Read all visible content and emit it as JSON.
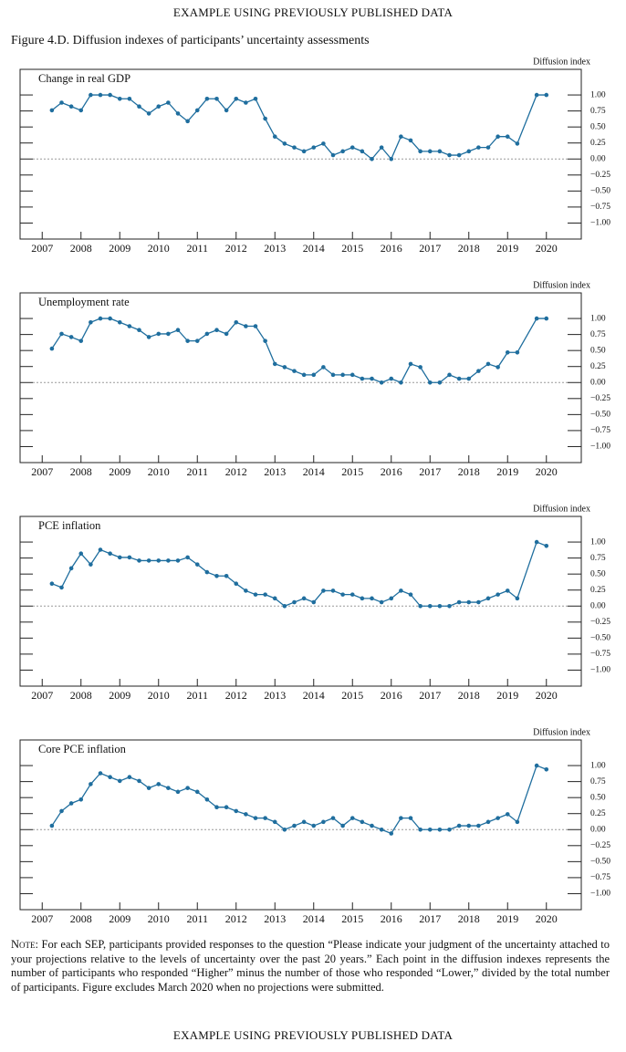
{
  "header": "EXAMPLE USING PREVIOUSLY PUBLISHED DATA",
  "figure_title": "Figure 4.D. Diffusion indexes of participants’ uncertainty assessments",
  "note_label": "Note:",
  "note": "For each SEP, participants provided responses to the question “Please indicate your judgment of the uncertainty attached to your projections relative to the levels of uncertainty over the past 20 years.” Each point in the diffusion indexes represents the number of participants who responded “Higher” minus the number of those who responded “Lower,” divided by the total number of participants. Figure excludes March 2020 when no projections were submitted.",
  "footer": "EXAMPLE USING PREVIOUSLY PUBLISHED DATA",
  "chart_data": [
    {
      "type": "line",
      "title": "Change in real GDP",
      "y_label": "Diffusion index",
      "color": "#1f6e9e",
      "zero_line": true,
      "x": [
        2007.75,
        2008,
        2008.25,
        2008.5,
        2008.75,
        2009,
        2009.25,
        2009.5,
        2009.75,
        2010,
        2010.25,
        2010.5,
        2010.75,
        2011,
        2011.25,
        2011.5,
        2011.75,
        2012,
        2012.25,
        2012.5,
        2012.75,
        2013,
        2013.25,
        2013.5,
        2013.75,
        2014,
        2014.25,
        2014.5,
        2014.75,
        2015,
        2015.25,
        2015.5,
        2015.75,
        2016,
        2016.25,
        2016.5,
        2016.75,
        2017,
        2017.25,
        2017.5,
        2017.75,
        2018,
        2018.25,
        2018.5,
        2018.75,
        2019,
        2019.25,
        2019.5,
        2019.75,
        2020.25,
        2020.5
      ],
      "values": [
        0.76,
        0.88,
        0.82,
        0.76,
        1.0,
        1.0,
        1.0,
        0.94,
        0.94,
        0.82,
        0.71,
        0.82,
        0.88,
        0.71,
        0.59,
        0.76,
        0.94,
        0.94,
        0.76,
        0.94,
        0.88,
        0.94,
        0.63,
        0.35,
        0.24,
        0.18,
        0.12,
        0.18,
        0.24,
        0.06,
        0.12,
        0.18,
        0.12,
        0.0,
        0.18,
        0.0,
        0.35,
        0.29,
        0.12,
        0.12,
        0.12,
        0.06,
        0.06,
        0.12,
        0.18,
        0.18,
        0.35,
        0.35,
        0.24,
        1.0,
        1.0
      ],
      "xlim": [
        2007,
        2021.4
      ],
      "ylim": [
        -1.25,
        1.4
      ],
      "xticks": [
        {
          "value": 2007.5,
          "label": "2007"
        },
        {
          "value": 2008.5,
          "label": "2008"
        },
        {
          "value": 2009.5,
          "label": "2009"
        },
        {
          "value": 2010.5,
          "label": "2010"
        },
        {
          "value": 2011.5,
          "label": "2011"
        },
        {
          "value": 2012.5,
          "label": "2012"
        },
        {
          "value": 2013.5,
          "label": "2013"
        },
        {
          "value": 2014.5,
          "label": "2014"
        },
        {
          "value": 2015.5,
          "label": "2015"
        },
        {
          "value": 2016.5,
          "label": "2016"
        },
        {
          "value": 2017.5,
          "label": "2017"
        },
        {
          "value": 2018.5,
          "label": "2018"
        },
        {
          "value": 2019.5,
          "label": "2019"
        },
        {
          "value": 2020.5,
          "label": "2020"
        }
      ],
      "yticks": [
        {
          "value": 1,
          "label": "1.00"
        },
        {
          "value": 0.75,
          "label": "0.75"
        },
        {
          "value": 0.5,
          "label": "0.50"
        },
        {
          "value": 0.25,
          "label": "0.25"
        },
        {
          "value": 0,
          "label": "0.00"
        },
        {
          "value": -0.25,
          "label": "−0.25"
        },
        {
          "value": -0.5,
          "label": "−0.50"
        },
        {
          "value": -0.75,
          "label": "−0.75"
        },
        {
          "value": -1,
          "label": "−1.00"
        }
      ]
    },
    {
      "type": "line",
      "title": "Unemployment rate",
      "y_label": "Diffusion index",
      "color": "#1f6e9e",
      "zero_line": true,
      "x": [
        2007.75,
        2008,
        2008.25,
        2008.5,
        2008.75,
        2009,
        2009.25,
        2009.5,
        2009.75,
        2010,
        2010.25,
        2010.5,
        2010.75,
        2011,
        2011.25,
        2011.5,
        2011.75,
        2012,
        2012.25,
        2012.5,
        2012.75,
        2013,
        2013.25,
        2013.5,
        2013.75,
        2014,
        2014.25,
        2014.5,
        2014.75,
        2015,
        2015.25,
        2015.5,
        2015.75,
        2016,
        2016.25,
        2016.5,
        2016.75,
        2017,
        2017.25,
        2017.5,
        2017.75,
        2018,
        2018.25,
        2018.5,
        2018.75,
        2019,
        2019.25,
        2019.5,
        2019.75,
        2020.25,
        2020.5
      ],
      "values": [
        0.53,
        0.76,
        0.71,
        0.65,
        0.94,
        1.0,
        1.0,
        0.94,
        0.88,
        0.82,
        0.71,
        0.76,
        0.76,
        0.82,
        0.65,
        0.65,
        0.76,
        0.82,
        0.76,
        0.94,
        0.88,
        0.88,
        0.65,
        0.29,
        0.24,
        0.18,
        0.12,
        0.12,
        0.24,
        0.12,
        0.12,
        0.12,
        0.06,
        0.06,
        0.0,
        0.06,
        0.0,
        0.29,
        0.24,
        0.0,
        0.0,
        0.12,
        0.06,
        0.06,
        0.18,
        0.29,
        0.24,
        0.47,
        0.47,
        1.0,
        1.0
      ],
      "xlim": [
        2007,
        2021.4
      ],
      "ylim": [
        -1.25,
        1.4
      ],
      "xticks": [
        {
          "value": 2007.5,
          "label": "2007"
        },
        {
          "value": 2008.5,
          "label": "2008"
        },
        {
          "value": 2009.5,
          "label": "2009"
        },
        {
          "value": 2010.5,
          "label": "2010"
        },
        {
          "value": 2011.5,
          "label": "2011"
        },
        {
          "value": 2012.5,
          "label": "2012"
        },
        {
          "value": 2013.5,
          "label": "2013"
        },
        {
          "value": 2014.5,
          "label": "2014"
        },
        {
          "value": 2015.5,
          "label": "2015"
        },
        {
          "value": 2016.5,
          "label": "2016"
        },
        {
          "value": 2017.5,
          "label": "2017"
        },
        {
          "value": 2018.5,
          "label": "2018"
        },
        {
          "value": 2019.5,
          "label": "2019"
        },
        {
          "value": 2020.5,
          "label": "2020"
        }
      ],
      "yticks": [
        {
          "value": 1,
          "label": "1.00"
        },
        {
          "value": 0.75,
          "label": "0.75"
        },
        {
          "value": 0.5,
          "label": "0.50"
        },
        {
          "value": 0.25,
          "label": "0.25"
        },
        {
          "value": 0,
          "label": "0.00"
        },
        {
          "value": -0.25,
          "label": "−0.25"
        },
        {
          "value": -0.5,
          "label": "−0.50"
        },
        {
          "value": -0.75,
          "label": "−0.75"
        },
        {
          "value": -1,
          "label": "−1.00"
        }
      ]
    },
    {
      "type": "line",
      "title": "PCE inflation",
      "y_label": "Diffusion index",
      "color": "#1f6e9e",
      "zero_line": true,
      "x": [
        2007.75,
        2008,
        2008.25,
        2008.5,
        2008.75,
        2009,
        2009.25,
        2009.5,
        2009.75,
        2010,
        2010.25,
        2010.5,
        2010.75,
        2011,
        2011.25,
        2011.5,
        2011.75,
        2012,
        2012.25,
        2012.5,
        2012.75,
        2013,
        2013.25,
        2013.5,
        2013.75,
        2014,
        2014.25,
        2014.5,
        2014.75,
        2015,
        2015.25,
        2015.5,
        2015.75,
        2016,
        2016.25,
        2016.5,
        2016.75,
        2017,
        2017.25,
        2017.5,
        2017.75,
        2018,
        2018.25,
        2018.5,
        2018.75,
        2019,
        2019.25,
        2019.5,
        2019.75,
        2020.25,
        2020.5
      ],
      "values": [
        0.35,
        0.29,
        0.59,
        0.82,
        0.65,
        0.88,
        0.82,
        0.76,
        0.76,
        0.71,
        0.71,
        0.71,
        0.71,
        0.71,
        0.76,
        0.65,
        0.53,
        0.47,
        0.47,
        0.35,
        0.24,
        0.18,
        0.18,
        0.12,
        0.0,
        0.06,
        0.12,
        0.06,
        0.24,
        0.24,
        0.18,
        0.18,
        0.12,
        0.12,
        0.06,
        0.12,
        0.24,
        0.18,
        0.0,
        0.0,
        0.0,
        0.0,
        0.06,
        0.06,
        0.06,
        0.12,
        0.18,
        0.24,
        0.12,
        1.0,
        0.94
      ],
      "xlim": [
        2007,
        2021.4
      ],
      "ylim": [
        -1.25,
        1.4
      ],
      "xticks": [
        {
          "value": 2007.5,
          "label": "2007"
        },
        {
          "value": 2008.5,
          "label": "2008"
        },
        {
          "value": 2009.5,
          "label": "2009"
        },
        {
          "value": 2010.5,
          "label": "2010"
        },
        {
          "value": 2011.5,
          "label": "2011"
        },
        {
          "value": 2012.5,
          "label": "2012"
        },
        {
          "value": 2013.5,
          "label": "2013"
        },
        {
          "value": 2014.5,
          "label": "2014"
        },
        {
          "value": 2015.5,
          "label": "2015"
        },
        {
          "value": 2016.5,
          "label": "2016"
        },
        {
          "value": 2017.5,
          "label": "2017"
        },
        {
          "value": 2018.5,
          "label": "2018"
        },
        {
          "value": 2019.5,
          "label": "2019"
        },
        {
          "value": 2020.5,
          "label": "2020"
        }
      ],
      "yticks": [
        {
          "value": 1,
          "label": "1.00"
        },
        {
          "value": 0.75,
          "label": "0.75"
        },
        {
          "value": 0.5,
          "label": "0.50"
        },
        {
          "value": 0.25,
          "label": "0.25"
        },
        {
          "value": 0,
          "label": "0.00"
        },
        {
          "value": -0.25,
          "label": "−0.25"
        },
        {
          "value": -0.5,
          "label": "−0.50"
        },
        {
          "value": -0.75,
          "label": "−0.75"
        },
        {
          "value": -1,
          "label": "−1.00"
        }
      ]
    },
    {
      "type": "line",
      "title": "Core PCE inflation",
      "y_label": "Diffusion index",
      "color": "#1f6e9e",
      "zero_line": true,
      "x": [
        2007.75,
        2008,
        2008.25,
        2008.5,
        2008.75,
        2009,
        2009.25,
        2009.5,
        2009.75,
        2010,
        2010.25,
        2010.5,
        2010.75,
        2011,
        2011.25,
        2011.5,
        2011.75,
        2012,
        2012.25,
        2012.5,
        2012.75,
        2013,
        2013.25,
        2013.5,
        2013.75,
        2014,
        2014.25,
        2014.5,
        2014.75,
        2015,
        2015.25,
        2015.5,
        2015.75,
        2016,
        2016.25,
        2016.5,
        2016.75,
        2017,
        2017.25,
        2017.5,
        2017.75,
        2018,
        2018.25,
        2018.5,
        2018.75,
        2019,
        2019.25,
        2019.5,
        2019.75,
        2020.25,
        2020.5
      ],
      "values": [
        0.06,
        0.29,
        0.41,
        0.47,
        0.71,
        0.88,
        0.82,
        0.76,
        0.82,
        0.76,
        0.65,
        0.71,
        0.65,
        0.59,
        0.65,
        0.59,
        0.47,
        0.35,
        0.35,
        0.29,
        0.24,
        0.18,
        0.18,
        0.12,
        0.0,
        0.06,
        0.12,
        0.06,
        0.12,
        0.18,
        0.06,
        0.18,
        0.12,
        0.06,
        0.0,
        -0.06,
        0.18,
        0.18,
        0.0,
        0.0,
        0.0,
        0.0,
        0.06,
        0.06,
        0.06,
        0.12,
        0.18,
        0.24,
        0.12,
        1.0,
        0.94
      ],
      "xlim": [
        2007,
        2021.4
      ],
      "ylim": [
        -1.25,
        1.4
      ],
      "xticks": [
        {
          "value": 2007.5,
          "label": "2007"
        },
        {
          "value": 2008.5,
          "label": "2008"
        },
        {
          "value": 2009.5,
          "label": "2009"
        },
        {
          "value": 2010.5,
          "label": "2010"
        },
        {
          "value": 2011.5,
          "label": "2011"
        },
        {
          "value": 2012.5,
          "label": "2012"
        },
        {
          "value": 2013.5,
          "label": "2013"
        },
        {
          "value": 2014.5,
          "label": "2014"
        },
        {
          "value": 2015.5,
          "label": "2015"
        },
        {
          "value": 2016.5,
          "label": "2016"
        },
        {
          "value": 2017.5,
          "label": "2017"
        },
        {
          "value": 2018.5,
          "label": "2018"
        },
        {
          "value": 2019.5,
          "label": "2019"
        },
        {
          "value": 2020.5,
          "label": "2020"
        }
      ],
      "yticks": [
        {
          "value": 1,
          "label": "1.00"
        },
        {
          "value": 0.75,
          "label": "0.75"
        },
        {
          "value": 0.5,
          "label": "0.50"
        },
        {
          "value": 0.25,
          "label": "0.25"
        },
        {
          "value": 0,
          "label": "0.00"
        },
        {
          "value": -0.25,
          "label": "−0.25"
        },
        {
          "value": -0.5,
          "label": "−0.50"
        },
        {
          "value": -0.75,
          "label": "−0.75"
        },
        {
          "value": -1,
          "label": "−1.00"
        }
      ]
    }
  ]
}
